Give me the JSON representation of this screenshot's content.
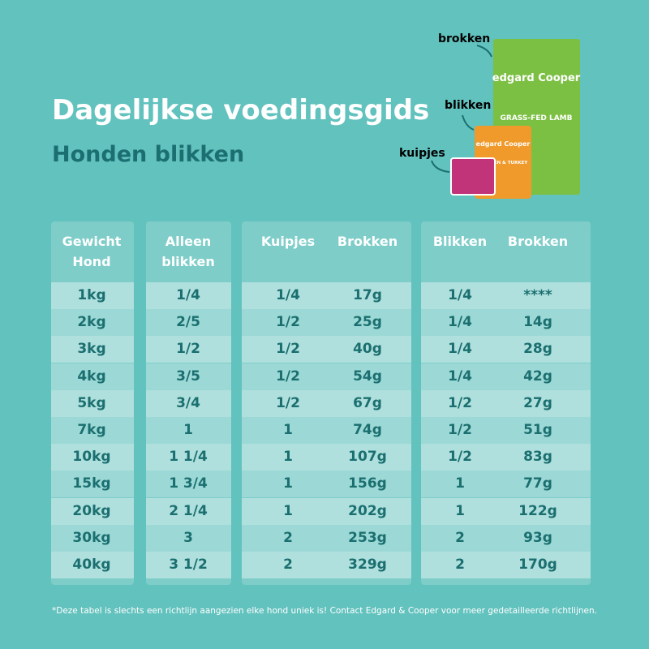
{
  "header": {
    "title": "Dagelijkse voedingsgids",
    "subtitle": "Honden blikken"
  },
  "products": {
    "labels": [
      "brokken",
      "blikken",
      "kuipjes"
    ],
    "bag_brand": "edgard Cooper",
    "bag_name": "GRASS-FED LAMB",
    "can_brand": "edgard Cooper",
    "can_name": "CHICKEN & TURKEY"
  },
  "table": {
    "headers": [
      "Gewicht Hond",
      "Alleen blikken",
      "Kuipjes",
      "Brokken",
      "Blikken",
      "Brokken"
    ],
    "rows": [
      [
        "1kg",
        "1/4",
        "1/4",
        "17g",
        "1/4",
        "****"
      ],
      [
        "2kg",
        "2/5",
        "1/2",
        "25g",
        "1/4",
        "14g"
      ],
      [
        "3kg",
        "1/2",
        "1/2",
        "40g",
        "1/4",
        "28g"
      ],
      [
        "4kg",
        "3/5",
        "1/2",
        "54g",
        "1/4",
        "42g"
      ],
      [
        "5kg",
        "3/4",
        "1/2",
        "67g",
        "1/2",
        "27g"
      ],
      [
        "7kg",
        "1",
        "1",
        "74g",
        "1/2",
        "51g"
      ],
      [
        "10kg",
        "1 1/4",
        "1",
        "107g",
        "1/2",
        "83g"
      ],
      [
        "15kg",
        "1 3/4",
        "1",
        "156g",
        "1",
        "77g"
      ],
      [
        "20kg",
        "2 1/4",
        "1",
        "202g",
        "1",
        "122g"
      ],
      [
        "30kg",
        "3",
        "2",
        "253g",
        "2",
        "93g"
      ],
      [
        "40kg",
        "3 1/2",
        "2",
        "329g",
        "2",
        "170g"
      ]
    ]
  },
  "footnote": "*Deze tabel is slechts een richtlijn aangezien elke hond uniek is! Contact Edgard & Cooper voor meer gedetailleerde richtlijnen."
}
